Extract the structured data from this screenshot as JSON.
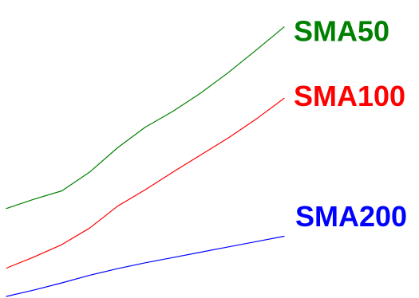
{
  "chart_data": {
    "type": "line",
    "x": [
      0,
      1,
      2,
      3,
      4,
      5,
      6,
      7,
      8,
      9,
      10
    ],
    "series": [
      {
        "name": "SMA50",
        "color": "#008000",
        "values": [
          14.9,
          16.5,
          17.9,
          21.1,
          25.2,
          28.7,
          31.4,
          34.5,
          38.0,
          41.8,
          45.7
        ]
      },
      {
        "name": "SMA100",
        "color": "#ff0000",
        "values": [
          4.8,
          6.7,
          8.8,
          11.6,
          15.3,
          18.1,
          21.1,
          24.0,
          26.9,
          30.1,
          33.6
        ]
      },
      {
        "name": "SMA200",
        "color": "#0000ff",
        "values": [
          0.0,
          1.1,
          2.3,
          3.6,
          4.7,
          5.7,
          6.6,
          7.5,
          8.4,
          9.3,
          10.2
        ]
      }
    ],
    "ylim": [
      0,
      50
    ],
    "grid": false,
    "legend": "inline labels at right end of each series"
  }
}
